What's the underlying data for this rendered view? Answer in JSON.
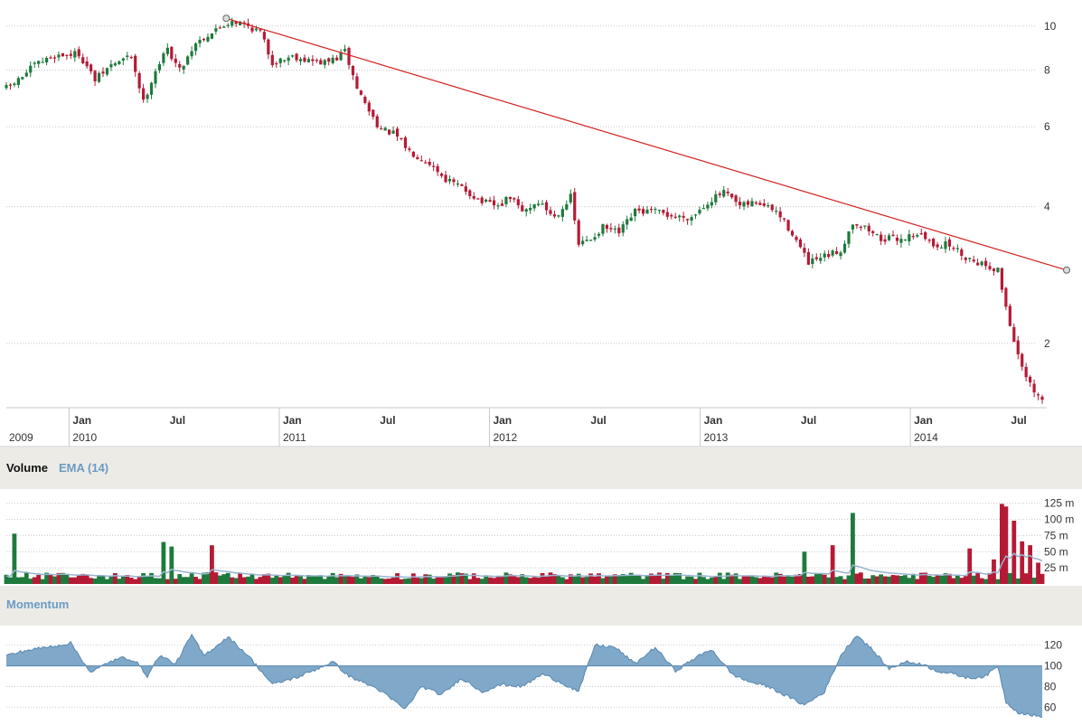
{
  "colors": {
    "up": "#1e7a3c",
    "down": "#b51a35",
    "trendline": "#d42020",
    "ema": "#9ab4cf",
    "momentum_fill": "#7fa8c9",
    "momentum_line": "#5a88b0",
    "grid": "#c8c8c8",
    "band": "#ecebe6",
    "label_blue": "#6b9bc3"
  },
  "chart_data": [
    {
      "type": "candlestick",
      "panel": "price",
      "y_scale": "log",
      "ylim": [
        1.45,
        11
      ],
      "y_ticks": [
        10,
        8,
        6,
        4,
        2
      ],
      "x_range": [
        "2009-09-14",
        "2014-08-18"
      ],
      "x_axis_labels": [
        {
          "date": "2010-01-01",
          "month": "Jan",
          "year": "2010"
        },
        {
          "date": "2010-07-01",
          "month": "Jul",
          "year": ""
        },
        {
          "date": "2011-01-01",
          "month": "Jan",
          "year": "2011"
        },
        {
          "date": "2011-07-01",
          "month": "Jul",
          "year": ""
        },
        {
          "date": "2012-01-01",
          "month": "Jan",
          "year": "2012"
        },
        {
          "date": "2012-07-01",
          "month": "Jul",
          "year": ""
        },
        {
          "date": "2013-01-01",
          "month": "Jan",
          "year": "2013"
        },
        {
          "date": "2013-07-01",
          "month": "Jul",
          "year": ""
        },
        {
          "date": "2014-01-01",
          "month": "Jan",
          "year": "2014"
        },
        {
          "date": "2014-07-01",
          "month": "Jul",
          "year": ""
        }
      ],
      "x_axis_start_year": "2009",
      "close_path": [
        [
          "2009-09-14",
          7.3
        ],
        [
          "2009-10-05",
          7.6
        ],
        [
          "2009-11-02",
          8.2
        ],
        [
          "2009-12-07",
          8.6
        ],
        [
          "2010-01-18",
          8.7
        ],
        [
          "2010-02-15",
          7.6
        ],
        [
          "2010-03-15",
          8.2
        ],
        [
          "2010-04-19",
          8.6
        ],
        [
          "2010-05-10",
          6.8
        ],
        [
          "2010-05-31",
          8.0
        ],
        [
          "2010-06-21",
          8.9
        ],
        [
          "2010-07-12",
          8.0
        ],
        [
          "2010-08-09",
          9.2
        ],
        [
          "2010-09-13",
          9.8
        ],
        [
          "2010-10-11",
          10.3
        ],
        [
          "2010-11-08",
          10.0
        ],
        [
          "2010-11-29",
          9.7
        ],
        [
          "2010-12-20",
          8.3
        ],
        [
          "2011-01-24",
          8.6
        ],
        [
          "2011-02-21",
          8.4
        ],
        [
          "2011-03-21",
          8.3
        ],
        [
          "2011-04-11",
          8.5
        ],
        [
          "2011-04-25",
          8.8
        ],
        [
          "2011-05-16",
          7.3
        ],
        [
          "2011-06-06",
          6.5
        ],
        [
          "2011-06-27",
          5.9
        ],
        [
          "2011-07-18",
          5.8
        ],
        [
          "2011-08-15",
          5.3
        ],
        [
          "2011-09-19",
          5.0
        ],
        [
          "2011-10-17",
          4.6
        ],
        [
          "2011-11-14",
          4.4
        ],
        [
          "2011-12-19",
          4.1
        ],
        [
          "2012-01-16",
          4.0
        ],
        [
          "2012-02-06",
          4.2
        ],
        [
          "2012-02-27",
          3.9
        ],
        [
          "2012-03-26",
          4.1
        ],
        [
          "2012-04-23",
          3.8
        ],
        [
          "2012-05-21",
          4.2
        ],
        [
          "2012-06-04",
          3.3
        ],
        [
          "2012-06-25",
          3.4
        ],
        [
          "2012-07-16",
          3.6
        ],
        [
          "2012-08-13",
          3.5
        ],
        [
          "2012-09-10",
          3.9
        ],
        [
          "2012-10-15",
          3.9
        ],
        [
          "2012-11-19",
          3.8
        ],
        [
          "2012-12-17",
          3.8
        ],
        [
          "2013-01-14",
          4.1
        ],
        [
          "2013-02-11",
          4.3
        ],
        [
          "2013-03-11",
          4.0
        ],
        [
          "2013-04-08",
          4.1
        ],
        [
          "2013-05-13",
          3.9
        ],
        [
          "2013-06-10",
          3.5
        ],
        [
          "2013-07-08",
          3.0
        ],
        [
          "2013-08-05",
          3.1
        ],
        [
          "2013-09-02",
          3.2
        ],
        [
          "2013-09-23",
          3.7
        ],
        [
          "2013-10-14",
          3.6
        ],
        [
          "2013-11-11",
          3.4
        ],
        [
          "2013-12-16",
          3.4
        ],
        [
          "2014-01-13",
          3.5
        ],
        [
          "2014-02-10",
          3.3
        ],
        [
          "2014-03-10",
          3.3
        ],
        [
          "2014-04-07",
          3.1
        ],
        [
          "2014-05-05",
          3.0
        ],
        [
          "2014-06-02",
          2.9
        ],
        [
          "2014-06-23",
          2.2
        ],
        [
          "2014-07-14",
          1.75
        ],
        [
          "2014-08-04",
          1.55
        ],
        [
          "2014-08-18",
          1.5
        ]
      ],
      "trendline": {
        "start": [
          "2010-10-01",
          10.4
        ],
        "end": [
          "2014-10-20",
          2.9
        ]
      }
    },
    {
      "type": "bar",
      "panel": "volume",
      "title": "Volume",
      "overlay": "EMA (14)",
      "ylim": [
        0,
        140
      ],
      "y_ticks": [
        {
          "value": 125,
          "label": "125 m"
        },
        {
          "value": 100,
          "label": "100 m"
        },
        {
          "value": 75,
          "label": "75 m"
        },
        {
          "value": 50,
          "label": "50 m"
        },
        {
          "value": 25,
          "label": "25 m"
        }
      ],
      "baseline": 12,
      "spikes": [
        [
          "2009-09-28",
          78,
          "up"
        ],
        [
          "2010-06-14",
          65,
          "up"
        ],
        [
          "2010-06-28",
          58,
          "up"
        ],
        [
          "2010-09-06",
          60,
          "down"
        ],
        [
          "2013-07-01",
          50,
          "up"
        ],
        [
          "2013-08-19",
          60,
          "down"
        ],
        [
          "2013-09-23",
          110,
          "up"
        ],
        [
          "2014-04-14",
          55,
          "down"
        ],
        [
          "2014-05-26",
          38,
          "down"
        ],
        [
          "2014-06-09",
          124,
          "down"
        ],
        [
          "2014-06-16",
          120,
          "down"
        ],
        [
          "2014-06-30",
          98,
          "down"
        ],
        [
          "2014-07-14",
          66,
          "down"
        ],
        [
          "2014-07-28",
          60,
          "down"
        ],
        [
          "2014-08-11",
          33,
          "down"
        ]
      ]
    },
    {
      "type": "area",
      "panel": "momentum",
      "title": "Momentum",
      "baseline": 100,
      "ylim": [
        48,
        132
      ],
      "y_ticks": [
        120,
        100,
        80,
        60
      ],
      "path": [
        [
          "2009-09-14",
          110
        ],
        [
          "2009-10-19",
          115
        ],
        [
          "2009-11-23",
          118
        ],
        [
          "2010-01-04",
          122
        ],
        [
          "2010-02-08",
          93
        ],
        [
          "2010-03-08",
          103
        ],
        [
          "2010-04-05",
          108
        ],
        [
          "2010-04-26",
          105
        ],
        [
          "2010-05-17",
          90
        ],
        [
          "2010-06-07",
          110
        ],
        [
          "2010-07-05",
          102
        ],
        [
          "2010-08-02",
          130
        ],
        [
          "2010-08-23",
          110
        ],
        [
          "2010-10-04",
          128
        ],
        [
          "2010-11-08",
          110
        ],
        [
          "2010-12-20",
          82
        ],
        [
          "2011-02-07",
          90
        ],
        [
          "2011-03-07",
          97
        ],
        [
          "2011-04-04",
          104
        ],
        [
          "2011-05-02",
          90
        ],
        [
          "2011-06-20",
          78
        ],
        [
          "2011-08-08",
          58
        ],
        [
          "2011-09-05",
          80
        ],
        [
          "2011-10-10",
          72
        ],
        [
          "2011-11-14",
          88
        ],
        [
          "2011-12-19",
          75
        ],
        [
          "2012-01-23",
          82
        ],
        [
          "2012-02-27",
          80
        ],
        [
          "2012-04-02",
          92
        ],
        [
          "2012-04-30",
          85
        ],
        [
          "2012-06-04",
          75
        ],
        [
          "2012-07-02",
          120
        ],
        [
          "2012-08-06",
          118
        ],
        [
          "2012-09-10",
          102
        ],
        [
          "2012-10-15",
          118
        ],
        [
          "2012-11-19",
          95
        ],
        [
          "2012-12-24",
          108
        ],
        [
          "2013-01-21",
          116
        ],
        [
          "2013-02-25",
          92
        ],
        [
          "2013-03-25",
          85
        ],
        [
          "2013-04-29",
          80
        ],
        [
          "2013-06-03",
          70
        ],
        [
          "2013-07-01",
          62
        ],
        [
          "2013-08-05",
          75
        ],
        [
          "2013-09-02",
          110
        ],
        [
          "2013-09-30",
          130
        ],
        [
          "2013-10-28",
          115
        ],
        [
          "2013-11-25",
          97
        ],
        [
          "2013-12-23",
          104
        ],
        [
          "2014-01-20",
          102
        ],
        [
          "2014-02-17",
          95
        ],
        [
          "2014-03-17",
          92
        ],
        [
          "2014-04-14",
          88
        ],
        [
          "2014-05-12",
          90
        ],
        [
          "2014-06-02",
          100
        ],
        [
          "2014-06-16",
          65
        ],
        [
          "2014-07-07",
          55
        ],
        [
          "2014-08-04",
          52
        ],
        [
          "2014-08-18",
          50
        ]
      ]
    }
  ]
}
